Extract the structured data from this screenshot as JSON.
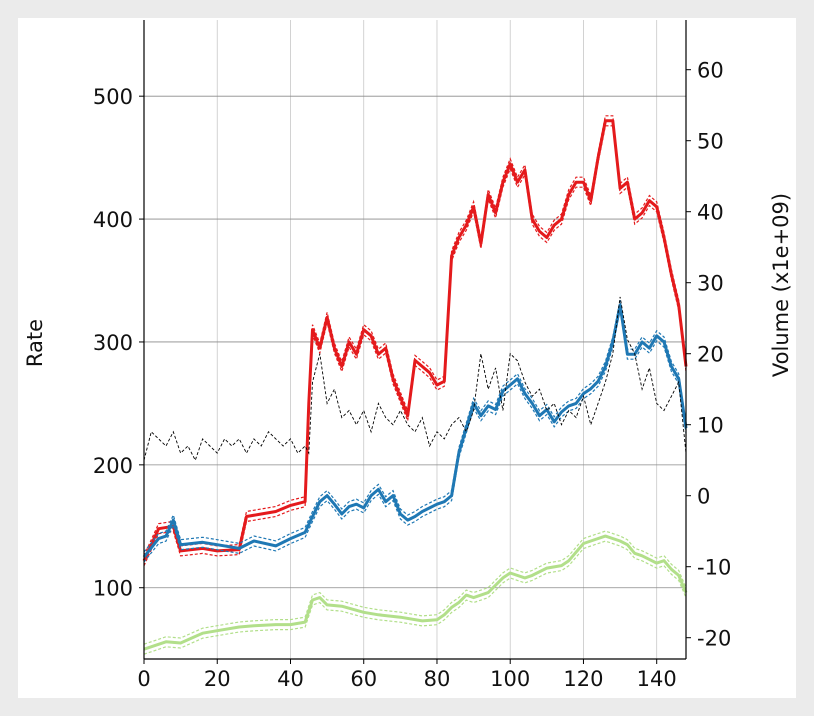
{
  "chart_data": {
    "type": "line",
    "title": "",
    "xlabel": "",
    "ylabel": "Rate",
    "y2label": "Volume (x1e+09)",
    "xlim": [
      0,
      148
    ],
    "ylim": [
      42,
      562
    ],
    "y2lim": [
      -23,
      67
    ],
    "grid": true,
    "xticks": [
      0,
      20,
      40,
      60,
      80,
      100,
      120,
      140
    ],
    "yticks": [
      100,
      200,
      300,
      400,
      500
    ],
    "y2ticks": [
      -20,
      -10,
      0,
      10,
      20,
      30,
      40,
      50,
      60
    ],
    "series": [
      {
        "color": "#e41a1c",
        "axis": "left",
        "x": [
          0,
          4,
          8,
          10,
          16,
          20,
          26,
          28,
          32,
          36,
          40,
          44,
          45,
          46,
          48,
          50,
          52,
          54,
          56,
          58,
          60,
          62,
          64,
          66,
          68,
          70,
          72,
          74,
          76,
          78,
          80,
          82,
          84,
          86,
          88,
          90,
          92,
          94,
          96,
          98,
          100,
          102,
          104,
          106,
          108,
          110,
          112,
          114,
          116,
          118,
          120,
          122,
          124,
          126,
          128,
          130,
          132,
          134,
          136,
          138,
          140,
          142,
          144,
          146,
          148
        ],
        "values": [
          122,
          148,
          150,
          130,
          132,
          130,
          131,
          158,
          160,
          162,
          167,
          170,
          250,
          310,
          295,
          320,
          295,
          280,
          300,
          290,
          310,
          305,
          290,
          295,
          270,
          255,
          240,
          285,
          280,
          275,
          265,
          268,
          370,
          385,
          395,
          410,
          380,
          420,
          405,
          430,
          445,
          430,
          440,
          400,
          390,
          385,
          395,
          400,
          420,
          430,
          430,
          415,
          450,
          480,
          480,
          425,
          430,
          400,
          405,
          415,
          410,
          385,
          355,
          330,
          280
        ]
      },
      {
        "color": "#1f78b4",
        "axis": "left",
        "x": [
          0,
          4,
          6,
          8,
          10,
          16,
          20,
          26,
          30,
          36,
          40,
          44,
          46,
          48,
          50,
          52,
          54,
          56,
          58,
          60,
          62,
          64,
          66,
          68,
          70,
          72,
          74,
          76,
          78,
          80,
          82,
          84,
          86,
          88,
          90,
          92,
          94,
          96,
          98,
          100,
          102,
          104,
          106,
          108,
          110,
          112,
          114,
          116,
          118,
          120,
          122,
          124,
          126,
          128,
          130,
          132,
          134,
          136,
          138,
          140,
          142,
          144,
          146,
          148
        ],
        "values": [
          125,
          140,
          142,
          155,
          135,
          137,
          135,
          132,
          138,
          134,
          140,
          145,
          158,
          170,
          175,
          168,
          160,
          166,
          168,
          165,
          175,
          180,
          170,
          175,
          160,
          155,
          158,
          162,
          165,
          168,
          170,
          175,
          210,
          230,
          250,
          240,
          248,
          245,
          260,
          265,
          270,
          258,
          250,
          240,
          245,
          235,
          243,
          248,
          250,
          258,
          262,
          268,
          280,
          300,
          330,
          290,
          290,
          300,
          295,
          305,
          300,
          280,
          270,
          230
        ]
      },
      {
        "color": "#b2df8a",
        "axis": "left",
        "x": [
          0,
          6,
          10,
          16,
          20,
          26,
          30,
          36,
          40,
          44,
          46,
          48,
          50,
          54,
          60,
          64,
          70,
          76,
          80,
          82,
          84,
          86,
          88,
          90,
          94,
          98,
          100,
          104,
          106,
          110,
          114,
          116,
          120,
          122,
          126,
          130,
          132,
          134,
          136,
          140,
          142,
          144,
          146,
          148
        ],
        "values": [
          50,
          56,
          55,
          63,
          65,
          68,
          69,
          70,
          70,
          72,
          90,
          92,
          86,
          85,
          80,
          78,
          76,
          73,
          74,
          78,
          84,
          88,
          94,
          92,
          96,
          108,
          112,
          108,
          110,
          116,
          118,
          122,
          136,
          138,
          142,
          138,
          135,
          128,
          126,
          120,
          122,
          115,
          110,
          96
        ]
      },
      {
        "color": "#000000",
        "axis": "right",
        "x": [
          0,
          2,
          4,
          6,
          8,
          10,
          12,
          14,
          16,
          18,
          20,
          22,
          24,
          26,
          28,
          30,
          32,
          34,
          36,
          38,
          40,
          42,
          44,
          45,
          46,
          48,
          50,
          52,
          54,
          56,
          58,
          60,
          62,
          64,
          66,
          68,
          70,
          72,
          74,
          76,
          78,
          80,
          82,
          84,
          86,
          88,
          90,
          92,
          94,
          96,
          98,
          100,
          102,
          104,
          106,
          108,
          110,
          112,
          114,
          116,
          118,
          120,
          122,
          124,
          126,
          128,
          130,
          132,
          134,
          136,
          138,
          140,
          142,
          144,
          146,
          148
        ],
        "values": [
          5,
          9,
          8,
          7,
          9,
          6,
          7,
          5,
          8,
          7,
          6,
          8,
          7,
          8,
          6,
          8,
          7,
          9,
          8,
          7,
          8,
          6,
          7,
          6,
          16,
          20,
          13,
          15,
          11,
          12,
          10,
          12,
          9,
          13,
          11,
          10,
          12,
          10,
          9,
          11,
          7,
          9,
          8,
          10,
          11,
          9,
          12,
          20,
          15,
          18,
          12,
          20,
          19,
          16,
          14,
          15,
          12,
          13,
          10,
          12,
          11,
          14,
          10,
          13,
          16,
          20,
          28,
          22,
          20,
          15,
          18,
          13,
          12,
          14,
          16,
          6
        ]
      }
    ]
  }
}
